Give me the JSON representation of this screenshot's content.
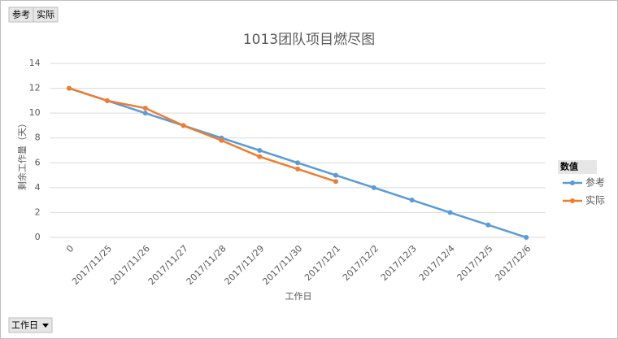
{
  "chart_data": {
    "type": "line",
    "title": "1013团队项目燃尽图",
    "categories": [
      "0",
      "2017/11/25",
      "2017/11/26",
      "2017/11/27",
      "2017/11/28",
      "2017/11/29",
      "2017/11/30",
      "2017/12/1",
      "2017/12/2",
      "2017/12/3",
      "2017/12/4",
      "2017/12/5",
      "2017/12/6"
    ],
    "series": [
      {
        "name": "参考",
        "color": "#5b9bd5",
        "values": [
          12,
          11,
          10,
          9,
          8,
          7,
          6,
          5,
          4,
          3,
          2,
          1,
          0
        ]
      },
      {
        "name": "实际",
        "color": "#ed7d31",
        "values": [
          12,
          11,
          10.4,
          9,
          7.8,
          6.5,
          5.5,
          4.5,
          null,
          null,
          null,
          null,
          null
        ]
      }
    ],
    "ylim": [
      0,
      14
    ],
    "yticks": [
      0,
      2,
      4,
      6,
      8,
      10,
      12,
      14
    ],
    "grid": true,
    "x_label": "工作日",
    "y_label": "剩余工作量（天）",
    "legend_title": "数值",
    "legend_position": "right"
  },
  "pivot_buttons": {
    "value_fields": [
      "参考",
      "实际"
    ],
    "axis_field": "工作日"
  }
}
